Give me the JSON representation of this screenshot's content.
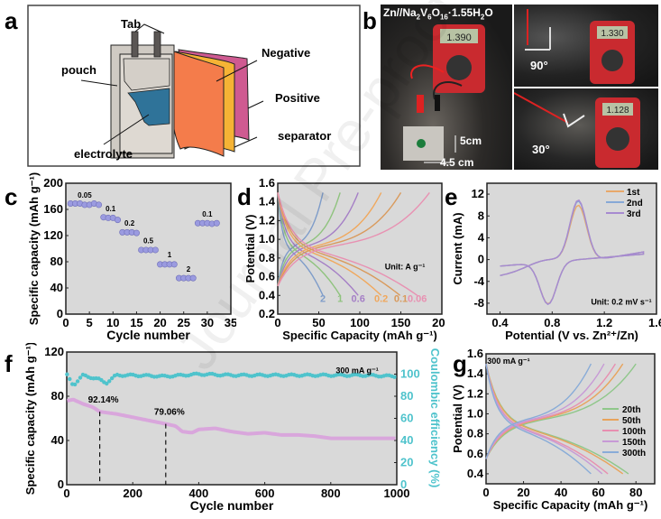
{
  "panels": {
    "a": {
      "label": "a",
      "callouts": {
        "tab": "Tab",
        "pouch": "pouch",
        "electrolyte": "electrolyte",
        "negative": "Negative",
        "positive": "Positive",
        "separator": "separator"
      },
      "colors": {
        "negative": "#f47c4b",
        "separator": "#f5b335",
        "positive": "#cf5a91",
        "electrolyte": "#2f7399",
        "pouch": "#d7d1ca"
      }
    },
    "b": {
      "label": "b",
      "title_main": "Zn//Na",
      "title_parts": [
        "Zn//Na",
        "2",
        "V",
        "6",
        "O",
        "16",
        "·1.55H",
        "2",
        "O"
      ],
      "readings": [
        "1.390",
        "1.330",
        "1.128"
      ],
      "angle_top": "90°",
      "angle_bottom": "30°",
      "dim_height": "5cm",
      "dim_width": "4.5 cm"
    },
    "watermark": "Journal Pre-proof"
  },
  "chart_data": [
    {
      "id": "c",
      "label": "c",
      "type": "scatter",
      "xlabel": "Cycle number",
      "ylabel": "Specific capacity (mAh g⁻¹)",
      "xlim": [
        0,
        35
      ],
      "ylim": [
        0,
        200
      ],
      "xticks": [
        0,
        5,
        10,
        15,
        20,
        25,
        30,
        35
      ],
      "yticks": [
        0,
        40,
        80,
        120,
        160,
        200
      ],
      "marker_color": "#9b9be0",
      "points": [
        [
          1,
          169
        ],
        [
          2,
          169
        ],
        [
          3,
          169
        ],
        [
          4,
          167
        ],
        [
          5,
          167
        ],
        [
          6,
          169
        ],
        [
          7,
          167
        ],
        [
          8,
          148
        ],
        [
          9,
          147
        ],
        [
          10,
          147
        ],
        [
          11,
          144
        ],
        [
          12,
          125
        ],
        [
          13,
          125
        ],
        [
          14,
          125
        ],
        [
          15,
          124
        ],
        [
          16,
          98
        ],
        [
          17,
          98
        ],
        [
          18,
          98
        ],
        [
          19,
          98
        ],
        [
          20,
          76
        ],
        [
          21,
          76
        ],
        [
          22,
          76
        ],
        [
          23,
          76
        ],
        [
          24,
          55
        ],
        [
          25,
          55
        ],
        [
          26,
          55
        ],
        [
          27,
          55
        ],
        [
          28,
          139
        ],
        [
          29,
          139
        ],
        [
          30,
          139
        ],
        [
          31,
          138
        ],
        [
          32,
          139
        ]
      ],
      "annotations": [
        {
          "text": "0.05",
          "x": 4,
          "y": 178
        },
        {
          "text": "0.1",
          "x": 9.5,
          "y": 157
        },
        {
          "text": "0.2",
          "x": 13.5,
          "y": 135
        },
        {
          "text": "0.5",
          "x": 17.5,
          "y": 108
        },
        {
          "text": "1",
          "x": 22,
          "y": 87
        },
        {
          "text": "2",
          "x": 26,
          "y": 65
        },
        {
          "text": "0.1",
          "x": 30,
          "y": 149
        }
      ]
    },
    {
      "id": "d",
      "label": "d",
      "type": "line",
      "xlabel": "Specific Capacity (mAh g⁻¹)",
      "ylabel": "Potential (V)",
      "xlim": [
        0,
        200
      ],
      "ylim": [
        0.2,
        1.6
      ],
      "xticks": [
        0,
        50,
        100,
        150,
        200
      ],
      "yticks": [
        0.2,
        0.4,
        0.6,
        0.8,
        1.0,
        1.2,
        1.4,
        1.6
      ],
      "annotation": "Unit: A g⁻¹",
      "series": [
        {
          "name": "2",
          "color": "#7e9cc9",
          "charge_max": 55,
          "discharge_max": 55
        },
        {
          "name": "1",
          "color": "#8fc37e",
          "charge_max": 76,
          "discharge_max": 76
        },
        {
          "name": "0.6",
          "color": "#a57fc6",
          "charge_max": 98,
          "discharge_max": 98
        },
        {
          "name": "0.2",
          "color": "#f0a85d",
          "charge_max": 126,
          "discharge_max": 126
        },
        {
          "name": "0.1",
          "color": "#d99a5c",
          "charge_max": 150,
          "discharge_max": 149
        },
        {
          "name": "0.06",
          "color": "#e891b2",
          "charge_max": 185,
          "discharge_max": 170
        }
      ]
    },
    {
      "id": "e",
      "label": "e",
      "type": "line",
      "xlabel": "Potential (V vs. Zn²⁺/Zn)",
      "ylabel": "Current (mA)",
      "xlim": [
        0.3,
        1.6
      ],
      "ylim": [
        -10,
        14
      ],
      "xticks": [
        0.4,
        0.8,
        1.2,
        1.6
      ],
      "yticks": [
        -8,
        -4,
        0,
        4,
        8,
        12
      ],
      "annotation": "Unit: 0.2 mV s⁻¹",
      "legend": "top-right",
      "series": [
        {
          "name": "1st",
          "color": "#e8a86a",
          "ox_peak": [
            1.0,
            10.8
          ],
          "red_peak": [
            0.77,
            -9.0
          ]
        },
        {
          "name": "2nd",
          "color": "#86a8d6",
          "ox_peak": [
            1.0,
            11.6
          ],
          "red_peak": [
            0.77,
            -9.1
          ]
        },
        {
          "name": "3rd",
          "color": "#a78ad0",
          "ox_peak": [
            1.0,
            11.8
          ],
          "red_peak": [
            0.77,
            -9.1
          ]
        }
      ]
    },
    {
      "id": "f",
      "label": "f",
      "type": "scatter",
      "xlabel": "Cycle number",
      "ylabel": "Specific capacity (mAh g⁻¹)",
      "y2label": "Coulombic efficiency (%)",
      "xlim": [
        0,
        1000
      ],
      "ylim": [
        0,
        120
      ],
      "y2lim": [
        0,
        120
      ],
      "xticks": [
        0,
        200,
        400,
        600,
        800,
        1000
      ],
      "yticks": [
        0,
        40,
        80,
        120
      ],
      "y2ticks": [
        0,
        20,
        40,
        60,
        80,
        100
      ],
      "annotation": "300 mA g⁻¹",
      "capacity_color": "#d9a6dc",
      "ce_color": "#4fc3cc",
      "capacity": [
        [
          1,
          76
        ],
        [
          20,
          77
        ],
        [
          50,
          73
        ],
        [
          80,
          70
        ],
        [
          100,
          66
        ],
        [
          150,
          64
        ],
        [
          200,
          61
        ],
        [
          250,
          58
        ],
        [
          300,
          55
        ],
        [
          330,
          53
        ],
        [
          350,
          48
        ],
        [
          380,
          47
        ],
        [
          400,
          50
        ],
        [
          450,
          51
        ],
        [
          500,
          48
        ],
        [
          550,
          46
        ],
        [
          600,
          47
        ],
        [
          650,
          45
        ],
        [
          700,
          45
        ],
        [
          750,
          44
        ],
        [
          800,
          42
        ],
        [
          900,
          42
        ],
        [
          1000,
          42
        ]
      ],
      "coulombic_efficiency": [
        [
          1,
          99
        ],
        [
          20,
          90
        ],
        [
          50,
          99
        ],
        [
          100,
          95
        ],
        [
          120,
          92
        ],
        [
          150,
          99
        ],
        [
          200,
          99
        ],
        [
          300,
          98
        ],
        [
          400,
          100
        ],
        [
          500,
          99
        ],
        [
          600,
          99
        ],
        [
          700,
          99
        ],
        [
          800,
          99
        ],
        [
          900,
          99
        ],
        [
          1000,
          98
        ]
      ],
      "markers": [
        {
          "text": "92.14%",
          "x": 100,
          "y": 66
        },
        {
          "text": "79.06%",
          "x": 300,
          "y": 55
        }
      ]
    },
    {
      "id": "g",
      "label": "g",
      "type": "line",
      "xlabel": "Specific Capacity (mAh g⁻¹)",
      "ylabel": "Potential (V)",
      "xlim": [
        0,
        90
      ],
      "ylim": [
        0.3,
        1.6
      ],
      "xticks": [
        0,
        20,
        40,
        60,
        80
      ],
      "yticks": [
        0.4,
        0.6,
        0.8,
        1.0,
        1.2,
        1.4,
        1.6
      ],
      "annotation": "300 mA g⁻¹",
      "legend": "right",
      "series": [
        {
          "name": "20th",
          "color": "#8fc78a",
          "charge_max": 80,
          "discharge_max": 76
        },
        {
          "name": "50th",
          "color": "#e8a35c",
          "charge_max": 73,
          "discharge_max": 73
        },
        {
          "name": "100th",
          "color": "#e78fb0",
          "charge_max": 69,
          "discharge_max": 65
        },
        {
          "name": "150th",
          "color": "#c79ad6",
          "charge_max": 63,
          "discharge_max": 62
        },
        {
          "name": "300th",
          "color": "#89acd8",
          "charge_max": 56,
          "discharge_max": 56
        }
      ]
    }
  ]
}
